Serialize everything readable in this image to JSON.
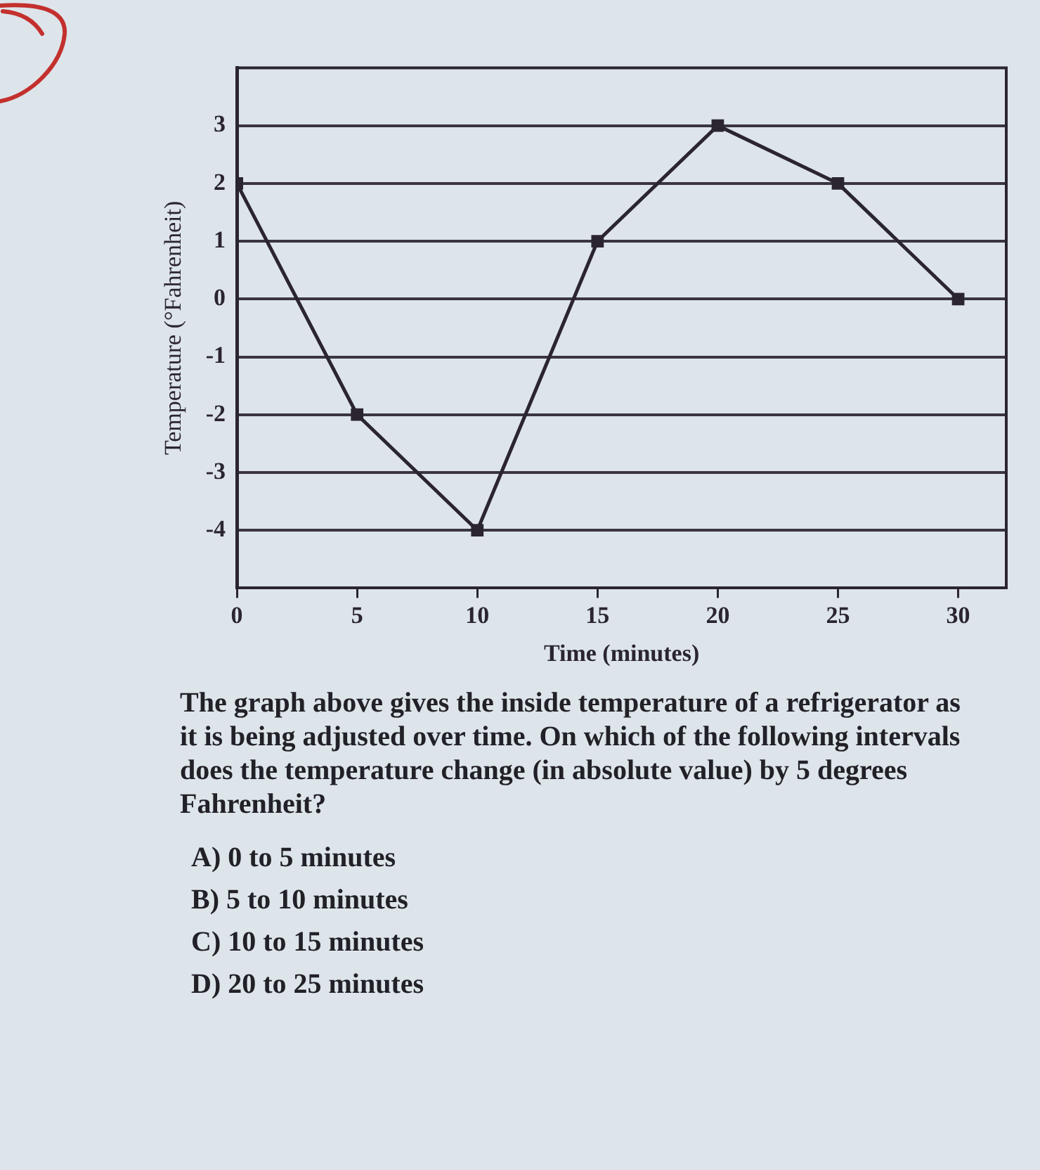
{
  "chart_data": {
    "type": "line",
    "xlabel": "Time (minutes)",
    "ylabel": "Temperature (°Fahrenheit)",
    "x": [
      0,
      5,
      10,
      15,
      20,
      25,
      30
    ],
    "series": [
      {
        "color": "#2b2530",
        "values": [
          2,
          -2,
          -4,
          1,
          3,
          2,
          0
        ]
      }
    ],
    "xlim": [
      0,
      32
    ],
    "xticks": [
      0,
      5,
      10,
      15,
      20,
      25,
      30
    ],
    "ylim": [
      -5,
      4
    ],
    "yticks": [
      -4,
      -3,
      -2,
      -1,
      0,
      1,
      2,
      3
    ],
    "grid": "y",
    "marker": "square",
    "line_style": "solid",
    "annotations": [
      "The graph above gives the inside temperature of a refrigerator as it is being adjusted over time. On which of the following intervals does the temperature change (in absolute value) by 5 degrees Fahrenheit?",
      "A) 0 to 5 minutes",
      "B) 5 to 10 minutes",
      "C) 10 to 15 minutes",
      "D) 20 to 25 minutes"
    ]
  }
}
